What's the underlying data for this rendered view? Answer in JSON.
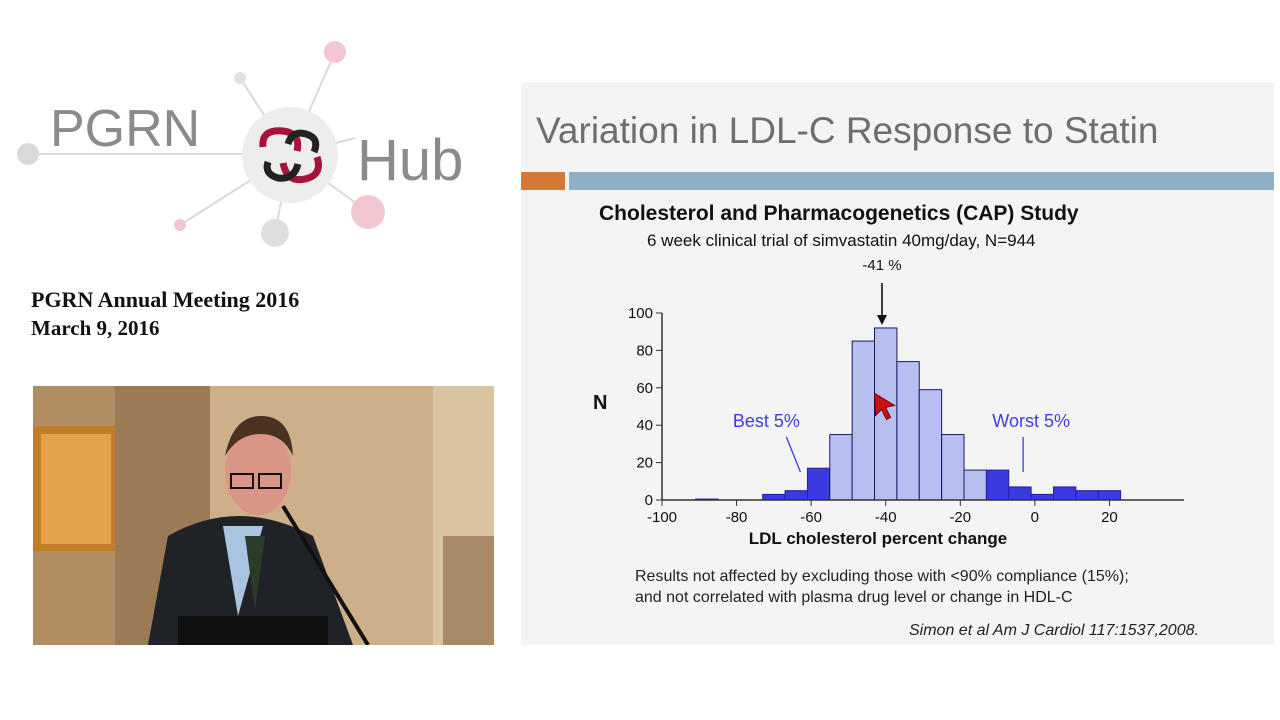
{
  "logo": {
    "left_text": "PGRN",
    "right_text": "Hub"
  },
  "meeting": {
    "title": "PGRN Annual Meeting 2016",
    "date": "March 9, 2016"
  },
  "video": {
    "subject": "speaker at podium"
  },
  "slide": {
    "title": "Variation in LDL-C Response to Statin",
    "study_title": "Cholesterol and Pharmacogenetics (CAP) Study",
    "study_subtitle": "6 week clinical trial of simvastatin 40mg/day, N=944",
    "footnote_line1": "Results not affected by excluding those with <90% compliance (15%);",
    "footnote_line2": "and not correlated with plasma drug level or change in HDL-C",
    "citation": "Simon et al Am J Cardiol 117:1537,2008."
  },
  "colors": {
    "accent_orange": "#d2793a",
    "accent_blue_bar": "#8fb0c4",
    "tail_fill": "#3a3ae0",
    "center_fill": "#b7bff0"
  },
  "chart_data": {
    "type": "bar",
    "ylabel": "N",
    "xlabel": "LDL cholesterol percent change",
    "ylim": [
      0,
      100
    ],
    "xlim": [
      -100,
      40
    ],
    "y_ticks": [
      "100",
      "80",
      "60",
      "40",
      "20",
      "0"
    ],
    "x_ticks": [
      "-100",
      "-80",
      "-60",
      "-40",
      "-20",
      "0",
      "20"
    ],
    "bin_width": 6,
    "bins": [
      {
        "start": -91,
        "value": 0.5,
        "tail": true
      },
      {
        "start": -73,
        "value": 3,
        "tail": true
      },
      {
        "start": -67,
        "value": 5,
        "tail": true
      },
      {
        "start": -61,
        "value": 17,
        "tail": true
      },
      {
        "start": -55,
        "value": 35,
        "tail": false
      },
      {
        "start": -49,
        "value": 85,
        "tail": false
      },
      {
        "start": -43,
        "value": 92,
        "tail": false
      },
      {
        "start": -37,
        "value": 74,
        "tail": false
      },
      {
        "start": -31,
        "value": 59,
        "tail": false
      },
      {
        "start": -25,
        "value": 35,
        "tail": false
      },
      {
        "start": -19,
        "value": 16,
        "tail": false
      },
      {
        "start": -13,
        "value": 16,
        "tail": true
      },
      {
        "start": -7,
        "value": 7,
        "tail": true
      },
      {
        "start": -1,
        "value": 3,
        "tail": true
      },
      {
        "start": 5,
        "value": 7,
        "tail": true
      },
      {
        "start": 11,
        "value": 5,
        "tail": true
      },
      {
        "start": 17,
        "value": 5,
        "tail": true
      }
    ],
    "annotations": {
      "peak": {
        "text": "-41 %",
        "x": -41
      },
      "best": {
        "text": "Best 5%",
        "x": -72
      },
      "worst": {
        "text": "Worst 5%",
        "x": -1
      }
    }
  }
}
